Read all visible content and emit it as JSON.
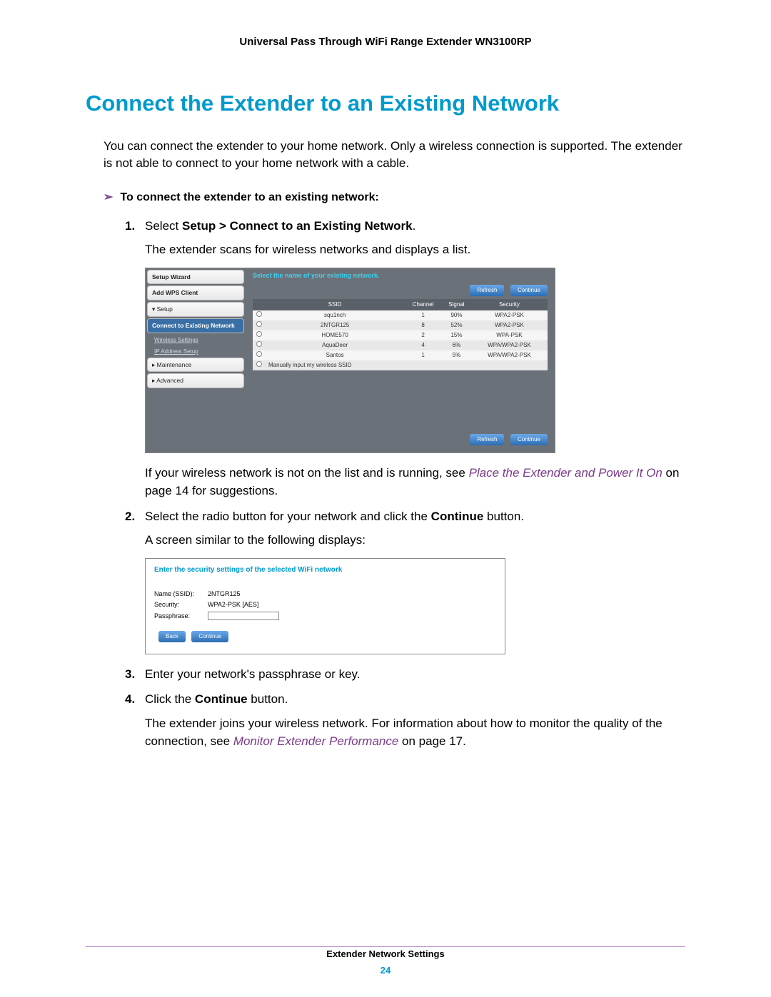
{
  "doc_header": "Universal Pass Through WiFi Range Extender WN3100RP",
  "heading": "Connect the Extender to an Existing Network",
  "intro": "You can connect the extender to your home network. Only a wireless connection is supported. The extender is not able to connect to your home network with a cable.",
  "procedure_title": "To connect the extender to an existing network:",
  "step1_prefix": "Select ",
  "step1_bold": "Setup > Connect to an Existing Network",
  "step1_suffix": ".",
  "step1_desc": "The extender scans for wireless networks and displays a list.",
  "step1_after_prefix": "If your wireless network is not on the list and is running, see ",
  "step1_after_link": "Place the Extender and Power It On",
  "step1_after_suffix": " on page 14 for suggestions.",
  "step2_prefix": "Select the radio button for your network and click the ",
  "step2_bold": "Continue",
  "step2_suffix": " button.",
  "step2_desc": "A screen similar to the following displays:",
  "step3": "Enter your network's passphrase or key.",
  "step4_prefix": "Click the ",
  "step4_bold": "Continue",
  "step4_suffix": " button.",
  "step4_desc_prefix": "The extender joins your wireless network. For information about how to monitor the quality of the connection, see ",
  "step4_desc_link": "Monitor Extender Performance",
  "step4_desc_suffix": " on page 17.",
  "ss1": {
    "instruction": "Select the name of your existing network.",
    "refresh": "Refresh",
    "cont": "Continue",
    "sidebar": {
      "wizard": "Setup Wizard",
      "wps": "Add WPS Client",
      "setup": "▾ Setup",
      "connect": "Connect to Existing Network",
      "wireless": "Wireless Settings",
      "ip": "IP Address Setup",
      "maint": "▸ Maintenance",
      "adv": "▸ Advanced"
    },
    "headers": {
      "ssid": "SSID",
      "channel": "Channel",
      "signal": "Signal",
      "security": "Security"
    },
    "rows": [
      {
        "ssid": "squ1nch",
        "ch": "1",
        "sig": "90%",
        "sec": "WPA2-PSK"
      },
      {
        "ssid": "2NTGR125",
        "ch": "8",
        "sig": "52%",
        "sec": "WPA2-PSK"
      },
      {
        "ssid": "HOME570",
        "ch": "2",
        "sig": "15%",
        "sec": "WPA-PSK"
      },
      {
        "ssid": "AquaDeer",
        "ch": "4",
        "sig": "6%",
        "sec": "WPA/WPA2-PSK"
      },
      {
        "ssid": "Santos",
        "ch": "1",
        "sig": "5%",
        "sec": "WPA/WPA2-PSK"
      }
    ],
    "manual": "Manually input my wireless SSID"
  },
  "ss2": {
    "title": "Enter the security settings of the selected WiFi network",
    "name_label": "Name (SSID):",
    "name_val": "2NTGR125",
    "sec_label": "Security:",
    "sec_val": "WPA2-PSK [AES]",
    "pass_label": "Passphrase:",
    "back": "Back",
    "cont": "Continue"
  },
  "footer_title": "Extender Network Settings",
  "page_num": "24",
  "colors": {
    "heading": "#009acd",
    "link": "#7a3a8a",
    "divider": "#b48fc2",
    "ss_bg": "#6b7178",
    "btn_grad_top": "#6aa8e8",
    "btn_grad_bot": "#2c6db3"
  }
}
